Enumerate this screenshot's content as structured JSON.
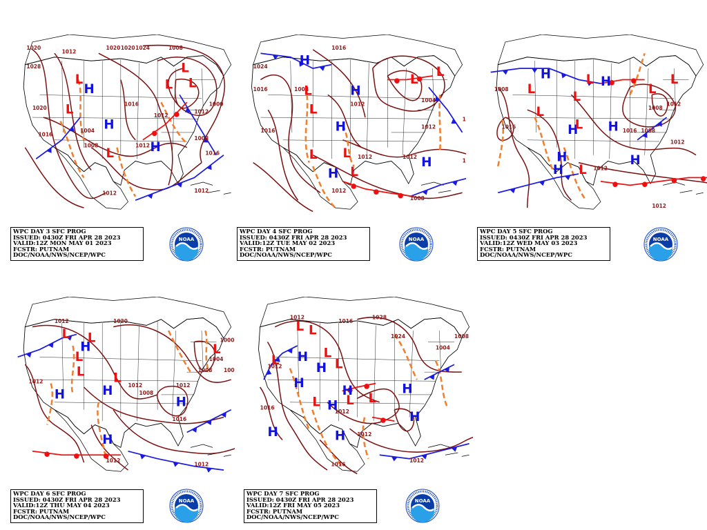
{
  "panels": [
    {
      "id": "day3",
      "lines": [
        "WPC DAY 3 SFC PROG",
        "ISSUED: 0430Z FRI APR 28 2023",
        "VALID:12Z MON MAY 01 2023",
        "FCSTR: PUTNAM",
        "DOC/NOAA/NWS/NCEP/WPC"
      ],
      "isobars": [
        "1020",
        "1028",
        "1020",
        "1012",
        "1016",
        "1020",
        "1020",
        "1024",
        "1016",
        "1004",
        "1008",
        "1012",
        "1012",
        "1008",
        "1012",
        "1008",
        "1000",
        "1016",
        "1012",
        "1012"
      ],
      "highs": 3,
      "lows": 6
    },
    {
      "id": "day4",
      "lines": [
        "WPC DAY 4 SFC PROG",
        "ISSUED: 0430Z FRI APR 28 2023",
        "VALID:12Z TUE MAY 02 2023",
        "FCSTR: PUTNAM",
        "DOC/NOAA/NWS/NCEP/WPC"
      ],
      "isobars": [
        "1024",
        "1016",
        "1016",
        "1008",
        "1016",
        "1012",
        "1004",
        "1012",
        "1012",
        "1012",
        "1012",
        "1012",
        "1008",
        "1008"
      ],
      "highs": 5,
      "lows": 7
    },
    {
      "id": "day5",
      "lines": [
        "WPC DAY 5 SFC PROG",
        "ISSUED: 0430Z FRI APR 28 2023",
        "VALID:12Z WED MAY 03 2023",
        "FCSTR: PUTNAM",
        "DOC/NOAA/NWS/NCEP/WPC"
      ],
      "isobars": [
        "1008",
        "1016",
        "1008",
        "1012",
        "1012",
        "1016",
        "1012",
        "1008",
        "1012"
      ],
      "highs": 7,
      "lows": 8
    },
    {
      "id": "day6",
      "lines": [
        "WPC DAY 6 SFC PROG",
        "ISSUED: 0430Z FRI APR 28 2023",
        "VALID:12Z THU MAY 04 2023",
        "FCSTR: PUTNAM",
        "DOC/NOAA/NWS/NCEP/WPC"
      ],
      "isobars": [
        "1012",
        "1020",
        "1000",
        "1004",
        "1008",
        "1008",
        "1012",
        "1012",
        "1008",
        "1016",
        "1012",
        "1012",
        "1012"
      ],
      "highs": 5,
      "lows": 6
    },
    {
      "id": "day7",
      "lines": [
        "WPC DAY 7 SFC PROG",
        "ISSUED: 0430Z FRI APR 28 2023",
        "VALID:12Z FRI MAY 05 2023",
        "FCSTR: PUTNAM",
        "DOC/NOAA/NWS/NCEP/WPC"
      ],
      "isobars": [
        "1012",
        "1016",
        "1028",
        "1024",
        "1004",
        "1008",
        "1012",
        "1016",
        "1012",
        "1012",
        "1016",
        "1012"
      ],
      "highs": 9,
      "lows": 8
    }
  ],
  "logo": {
    "text": "NOAA",
    "ring_text": "NATIONAL OCEANIC AND ATMOSPHERIC ADMINISTRATION"
  },
  "colors": {
    "isobar": "#7a1010",
    "high": "#1010e0",
    "low": "#ee1010",
    "trough": "#f08030",
    "cold_front": "#1a1ae0",
    "warm_front": "#ee1010",
    "occluded": "#9040e0",
    "coast": "#000000"
  }
}
